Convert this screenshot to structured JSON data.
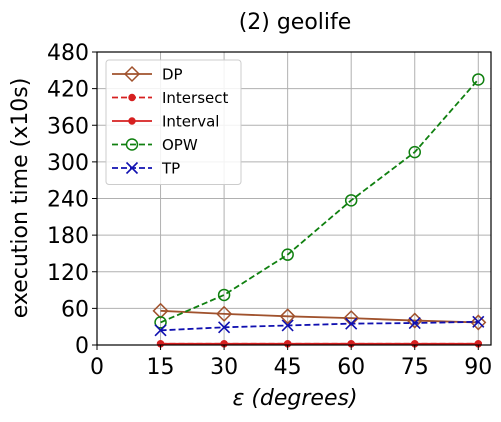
{
  "chart_data": {
    "type": "line",
    "title": "(2) geolife",
    "xlabel_symbol": "ε",
    "xlabel_unit": "(degrees)",
    "ylabel": "execution time (x10s)",
    "x": [
      15,
      30,
      45,
      60,
      75,
      90
    ],
    "xlim": [
      0,
      93
    ],
    "ylim": [
      0,
      480
    ],
    "xticks": [
      0,
      15,
      30,
      45,
      60,
      75,
      90
    ],
    "yticks": [
      0,
      60,
      120,
      180,
      240,
      300,
      360,
      420,
      480
    ],
    "grid": true,
    "legend_position": "top-left",
    "series": [
      {
        "name": "DP",
        "values": [
          56,
          51,
          47,
          44,
          40,
          37
        ],
        "color": "#a0522d",
        "line": "solid",
        "marker": "diamond-open"
      },
      {
        "name": "Intersect",
        "values": [
          2,
          2,
          2,
          2,
          2,
          2
        ],
        "color": "#d62020",
        "line": "dashed",
        "marker": "dot"
      },
      {
        "name": "Interval",
        "values": [
          2,
          2,
          2,
          2,
          2,
          2
        ],
        "color": "#d62020",
        "line": "solid",
        "marker": "dot"
      },
      {
        "name": "OPW",
        "values": [
          37,
          82,
          148,
          237,
          316,
          435
        ],
        "color": "#108010",
        "line": "dashed",
        "marker": "circle-open"
      },
      {
        "name": "TP",
        "values": [
          24,
          29,
          32,
          35,
          36,
          38
        ],
        "color": "#1010b0",
        "line": "dashed",
        "marker": "x"
      }
    ]
  }
}
